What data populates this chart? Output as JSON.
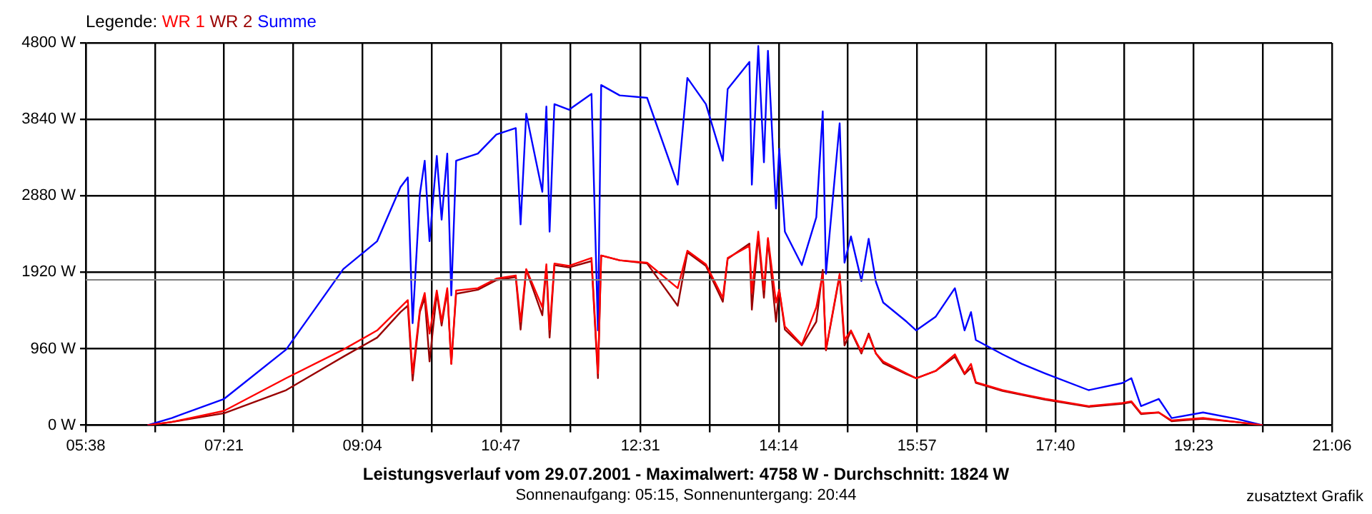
{
  "chart_data": {
    "type": "line",
    "title": "Leistungsverlauf vom 29.07.2001 - Maximalwert: 4758 W - Durchschnitt: 1824 W",
    "subtitle": "Sonnenaufgang: 05:15, Sonnenuntergang: 20:44",
    "legend_title": "Legende:",
    "legend": "top left",
    "grid": true,
    "annotations": [
      "zusatztext Grafik"
    ],
    "x": [
      6.4,
      6.7,
      7.35,
      8.12,
      8.83,
      9.25,
      9.54,
      9.63,
      9.69,
      9.78,
      9.84,
      9.9,
      9.99,
      10.05,
      10.12,
      10.17,
      10.23,
      10.5,
      10.73,
      10.97,
      11.03,
      11.1,
      11.3,
      11.35,
      11.39,
      11.45,
      11.63,
      11.91,
      11.99,
      12.03,
      12.26,
      12.6,
      12.98,
      13.1,
      13.33,
      13.54,
      13.6,
      13.87,
      13.9,
      13.98,
      14.05,
      14.1,
      14.2,
      14.24,
      14.31,
      14.52,
      14.7,
      14.78,
      14.82,
      14.99,
      15.05,
      15.13,
      15.26,
      15.35,
      15.44,
      15.53,
      15.82,
      15.94,
      16.18,
      16.42,
      16.54,
      16.62,
      16.68,
      17.01,
      17.25,
      17.54,
      18.08,
      18.5,
      18.61,
      18.73,
      18.95,
      19.11,
      19.5,
      19.91,
      20.24
    ],
    "series": [
      {
        "name": "WR 1",
        "color": "#ff0000",
        "values": [
          0,
          40,
          180,
          590,
          950,
          1190,
          1480,
          1570,
          650,
          1450,
          1660,
          1150,
          1690,
          1300,
          1720,
          770,
          1690,
          1720,
          1840,
          1880,
          1300,
          1960,
          1480,
          2020,
          1200,
          2030,
          2000,
          2100,
          650,
          2130,
          2070,
          2040,
          1720,
          2190,
          2020,
          1600,
          2100,
          2250,
          1660,
          2430,
          1700,
          2350,
          1540,
          1700,
          1240,
          1010,
          1480,
          1900,
          950,
          1900,
          1070,
          1190,
          920,
          1130,
          900,
          800,
          650,
          590,
          680,
          890,
          650,
          770,
          540,
          440,
          390,
          330,
          240,
          280,
          300,
          150,
          160,
          60,
          90,
          40,
          0
        ]
      },
      {
        "name": "WR 2",
        "color": "#990000",
        "values": [
          0,
          40,
          150,
          440,
          860,
          1100,
          1420,
          1500,
          560,
          1420,
          1600,
          800,
          1660,
          1250,
          1690,
          770,
          1650,
          1700,
          1820,
          1860,
          1200,
          1950,
          1380,
          1990,
          1100,
          2010,
          1980,
          2060,
          590,
          2130,
          2070,
          2030,
          1500,
          2170,
          2000,
          1550,
          2090,
          2280,
          1450,
          2380,
          1600,
          2330,
          1300,
          1700,
          1200,
          1000,
          1300,
          1950,
          940,
          1880,
          1000,
          1180,
          900,
          1150,
          900,
          780,
          640,
          590,
          680,
          860,
          640,
          720,
          530,
          430,
          380,
          320,
          230,
          270,
          290,
          140,
          160,
          50,
          80,
          40,
          0
        ]
      },
      {
        "name": "Summe",
        "color": "#0000ff",
        "values": [
          0,
          90,
          330,
          950,
          1960,
          2310,
          2990,
          3110,
          1280,
          2900,
          3320,
          2310,
          3380,
          2580,
          3410,
          1630,
          3320,
          3410,
          3650,
          3730,
          2520,
          3910,
          2930,
          4000,
          2430,
          4030,
          3960,
          4160,
          1190,
          4270,
          4140,
          4110,
          3020,
          4360,
          4030,
          3320,
          4220,
          4560,
          3020,
          4760,
          3300,
          4700,
          2720,
          3470,
          2430,
          2010,
          2610,
          3940,
          1900,
          3790,
          2040,
          2370,
          1810,
          2340,
          1800,
          1540,
          1300,
          1190,
          1360,
          1720,
          1190,
          1420,
          1070,
          890,
          770,
          650,
          440,
          530,
          590,
          240,
          330,
          90,
          160,
          80,
          0
        ]
      }
    ],
    "xlim": [
      5.6333,
      21.1
    ],
    "xticks": [
      {
        "value": 5.6333,
        "label": "05:38"
      },
      {
        "value": 6.4917,
        "label": null
      },
      {
        "value": 7.35,
        "label": "07:21"
      },
      {
        "value": 8.2083,
        "label": null
      },
      {
        "value": 9.0667,
        "label": "09:04"
      },
      {
        "value": 9.925,
        "label": null
      },
      {
        "value": 10.7833,
        "label": "10:47"
      },
      {
        "value": 11.65,
        "label": null
      },
      {
        "value": 12.5167,
        "label": "12:31"
      },
      {
        "value": 13.375,
        "label": null
      },
      {
        "value": 14.2333,
        "label": "14:14"
      },
      {
        "value": 15.0917,
        "label": null
      },
      {
        "value": 15.95,
        "label": "15:57"
      },
      {
        "value": 16.8083,
        "label": null
      },
      {
        "value": 17.6667,
        "label": "17:40"
      },
      {
        "value": 18.525,
        "label": null
      },
      {
        "value": 19.3833,
        "label": "19:23"
      },
      {
        "value": 20.2417,
        "label": null
      },
      {
        "value": 21.1,
        "label": "21:06"
      }
    ],
    "ylim": [
      0,
      4800
    ],
    "yticks": [
      {
        "value": 0,
        "label": "0 W"
      },
      {
        "value": 960,
        "label": "960 W"
      },
      {
        "value": 1920,
        "label": "1920 W"
      },
      {
        "value": 2880,
        "label": "2880 W"
      },
      {
        "value": 3840,
        "label": "3840 W"
      },
      {
        "value": 4800,
        "label": "4800 W"
      }
    ],
    "ref_lines": [
      {
        "axis": "y",
        "value": 1824,
        "color": "#808080"
      }
    ]
  }
}
